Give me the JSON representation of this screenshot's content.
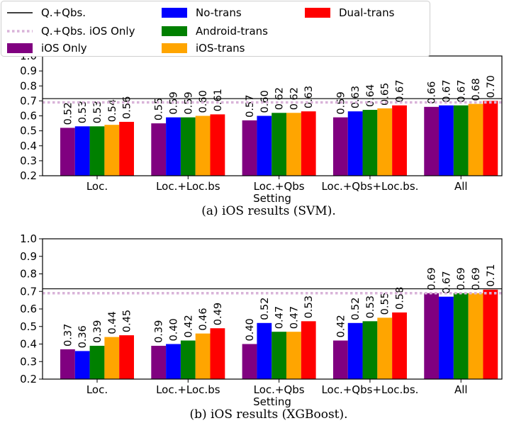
{
  "legend": {
    "entries": [
      {
        "label": "Q.+Qbs.",
        "kind": "line",
        "color": "#000000"
      },
      {
        "label": "Q.+Qbs. iOS Only",
        "kind": "dotted",
        "color": "#d9b3d9"
      },
      {
        "label": "iOS Only",
        "kind": "bar",
        "color": "#800080"
      },
      {
        "label": "No-trans",
        "kind": "bar",
        "color": "#0000ff"
      },
      {
        "label": "Android-trans",
        "kind": "bar",
        "color": "#008000"
      },
      {
        "label": "iOS-trans",
        "kind": "bar",
        "color": "#ffa500"
      },
      {
        "label": "Dual-trans",
        "kind": "bar",
        "color": "#ff0000"
      }
    ]
  },
  "chart_data": [
    {
      "type": "bar",
      "caption": "(a) iOS results (SVM).",
      "xlabel": "Setting",
      "ylabel": "",
      "ylim": [
        0.2,
        1.0
      ],
      "yticks": [
        "0.2",
        "0.3",
        "0.4",
        "0.5",
        "0.6",
        "0.7",
        "0.8",
        "0.9",
        "1.0"
      ],
      "categories": [
        "Loc.",
        "Loc.+Loc.bs",
        "Loc.+Qbs",
        "Loc.+Qbs+Loc.bs.",
        "All"
      ],
      "series": [
        {
          "name": "iOS Only",
          "color": "#800080",
          "values": [
            0.52,
            0.55,
            0.57,
            0.59,
            0.66
          ],
          "labels": [
            "0.52",
            "0.55",
            "0.57",
            "0.59",
            "0.66"
          ]
        },
        {
          "name": "No-trans",
          "color": "#0000ff",
          "values": [
            0.53,
            0.59,
            0.6,
            0.63,
            0.67
          ],
          "labels": [
            "0.53",
            "0.59",
            "0.60",
            "0.63",
            "0.67"
          ]
        },
        {
          "name": "Android-trans",
          "color": "#008000",
          "values": [
            0.53,
            0.59,
            0.62,
            0.64,
            0.67
          ],
          "labels": [
            "0.53",
            "0.59",
            "0.62",
            "0.64",
            "0.67"
          ]
        },
        {
          "name": "iOS-trans",
          "color": "#ffa500",
          "values": [
            0.54,
            0.6,
            0.62,
            0.65,
            0.68
          ],
          "labels": [
            "0.54",
            "0.60",
            "0.62",
            "0.65",
            "0.68"
          ]
        },
        {
          "name": "Dual-trans",
          "color": "#ff0000",
          "values": [
            0.56,
            0.61,
            0.63,
            0.67,
            0.7
          ],
          "labels": [
            "0.56",
            "0.61",
            "0.63",
            "0.67",
            "0.70"
          ]
        }
      ],
      "reference_lines": [
        {
          "name": "Q.+Qbs.",
          "value": 0.715,
          "style": "solid",
          "color": "#000000"
        },
        {
          "name": "Q.+Qbs. iOS Only",
          "value": 0.69,
          "style": "dotted",
          "color": "#d9b3d9"
        }
      ]
    },
    {
      "type": "bar",
      "caption": "(b) iOS results (XGBoost).",
      "xlabel": "Setting",
      "ylabel": "",
      "ylim": [
        0.2,
        1.0
      ],
      "yticks": [
        "0.2",
        "0.3",
        "0.4",
        "0.5",
        "0.6",
        "0.7",
        "0.8",
        "0.9",
        "1.0"
      ],
      "categories": [
        "Loc.",
        "Loc.+Loc.bs",
        "Loc.+Qbs",
        "Loc.+Qbs+Loc.bs.",
        "All"
      ],
      "series": [
        {
          "name": "iOS Only",
          "color": "#800080",
          "values": [
            0.37,
            0.39,
            0.4,
            0.42,
            0.69
          ],
          "labels": [
            "0.37",
            "0.39",
            "0.40",
            "0.42",
            "0.69"
          ]
        },
        {
          "name": "No-trans",
          "color": "#0000ff",
          "values": [
            0.36,
            0.4,
            0.52,
            0.52,
            0.67
          ],
          "labels": [
            "0.36",
            "0.40",
            "0.52",
            "0.52",
            "0.67"
          ]
        },
        {
          "name": "Android-trans",
          "color": "#008000",
          "values": [
            0.39,
            0.42,
            0.47,
            0.53,
            0.69
          ],
          "labels": [
            "0.39",
            "0.42",
            "0.47",
            "0.53",
            "0.69"
          ]
        },
        {
          "name": "iOS-trans",
          "color": "#ffa500",
          "values": [
            0.44,
            0.46,
            0.47,
            0.55,
            0.69
          ],
          "labels": [
            "0.44",
            "0.46",
            "0.47",
            "0.55",
            "0.69"
          ]
        },
        {
          "name": "Dual-trans",
          "color": "#ff0000",
          "values": [
            0.45,
            0.49,
            0.53,
            0.58,
            0.71
          ],
          "labels": [
            "0.45",
            "0.49",
            "0.53",
            "0.58",
            "0.71"
          ]
        }
      ],
      "reference_lines": [
        {
          "name": "Q.+Qbs.",
          "value": 0.715,
          "style": "solid",
          "color": "#000000"
        },
        {
          "name": "Q.+Qbs. iOS Only",
          "value": 0.69,
          "style": "dotted",
          "color": "#d9b3d9"
        }
      ]
    }
  ]
}
